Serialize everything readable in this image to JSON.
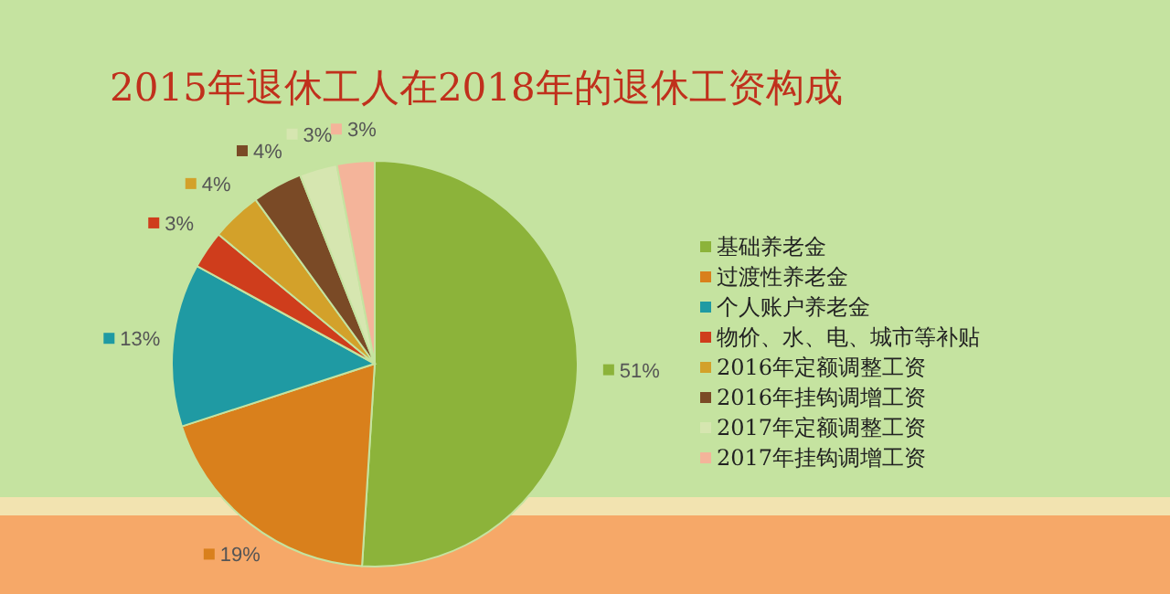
{
  "chart_data": {
    "type": "pie",
    "title": "2015年退休工人在2018年的退休工资构成",
    "categories": [
      "基础养老金",
      "过渡性养老金",
      "个人账户养老金",
      "物价、水、电、城市等补贴",
      "2016年定额调整工资",
      "2016年挂钩调增工资",
      "2017年定额调整工资",
      "2017年挂钩调增工资"
    ],
    "values": [
      51,
      19,
      13,
      3,
      4,
      4,
      3,
      3
    ],
    "value_labels": [
      "51%",
      "19%",
      "13%",
      "3%",
      "4%",
      "4%",
      "3%",
      "3%"
    ],
    "colors": [
      "#8cb33a",
      "#d9801c",
      "#1f9aa3",
      "#cf3d1c",
      "#d3a12a",
      "#7a4a26",
      "#d6e6b0",
      "#f4b49a"
    ],
    "legend": "right"
  }
}
